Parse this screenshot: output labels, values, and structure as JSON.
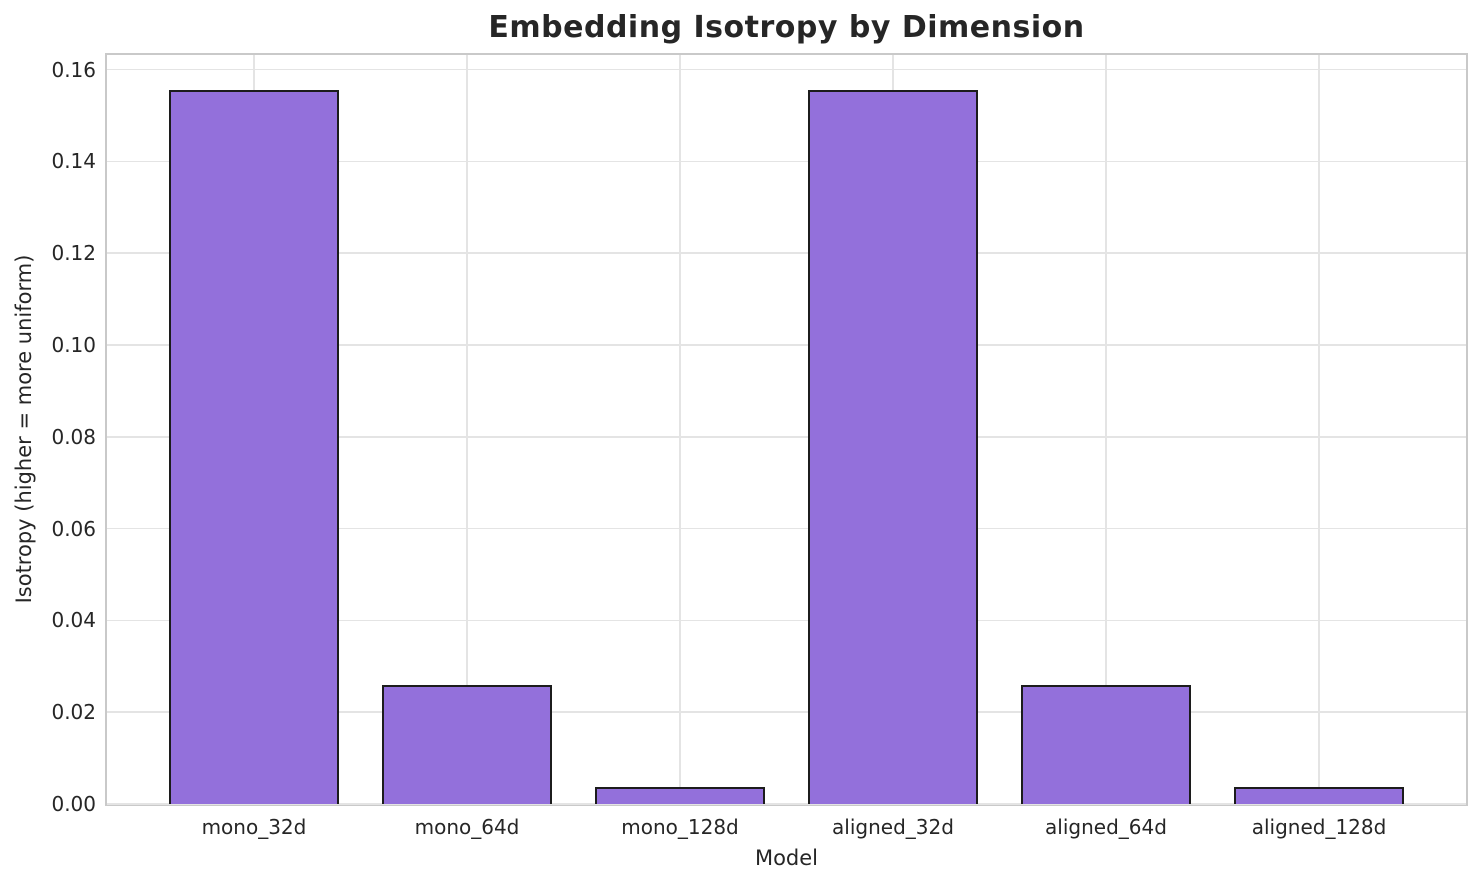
{
  "chart_data": {
    "type": "bar",
    "title": "Embedding Isotropy by Dimension",
    "xlabel": "Model",
    "ylabel": "Isotropy (higher = more uniform)",
    "categories": [
      "mono_32d",
      "mono_64d",
      "mono_128d",
      "aligned_32d",
      "aligned_64d",
      "aligned_128d"
    ],
    "values": [
      0.1555,
      0.0259,
      0.0036,
      0.1555,
      0.0259,
      0.0036
    ],
    "ylim": [
      0,
      0.1632
    ],
    "yticks": [
      0.0,
      0.02,
      0.04,
      0.06,
      0.08,
      0.1,
      0.12,
      0.14,
      0.16
    ],
    "ytick_labels": [
      "0.00",
      "0.02",
      "0.04",
      "0.06",
      "0.08",
      "0.10",
      "0.12",
      "0.14",
      "0.16"
    ],
    "grid": "both",
    "legend": "none",
    "bar_width_fraction": 0.8,
    "colors": {
      "bar_fill": "#9370DB",
      "bar_edge": "#1c1c1c",
      "grid": "#e4e4e4",
      "spine": "#c9c9c9",
      "text": "#262626",
      "background": "#ffffff"
    }
  }
}
